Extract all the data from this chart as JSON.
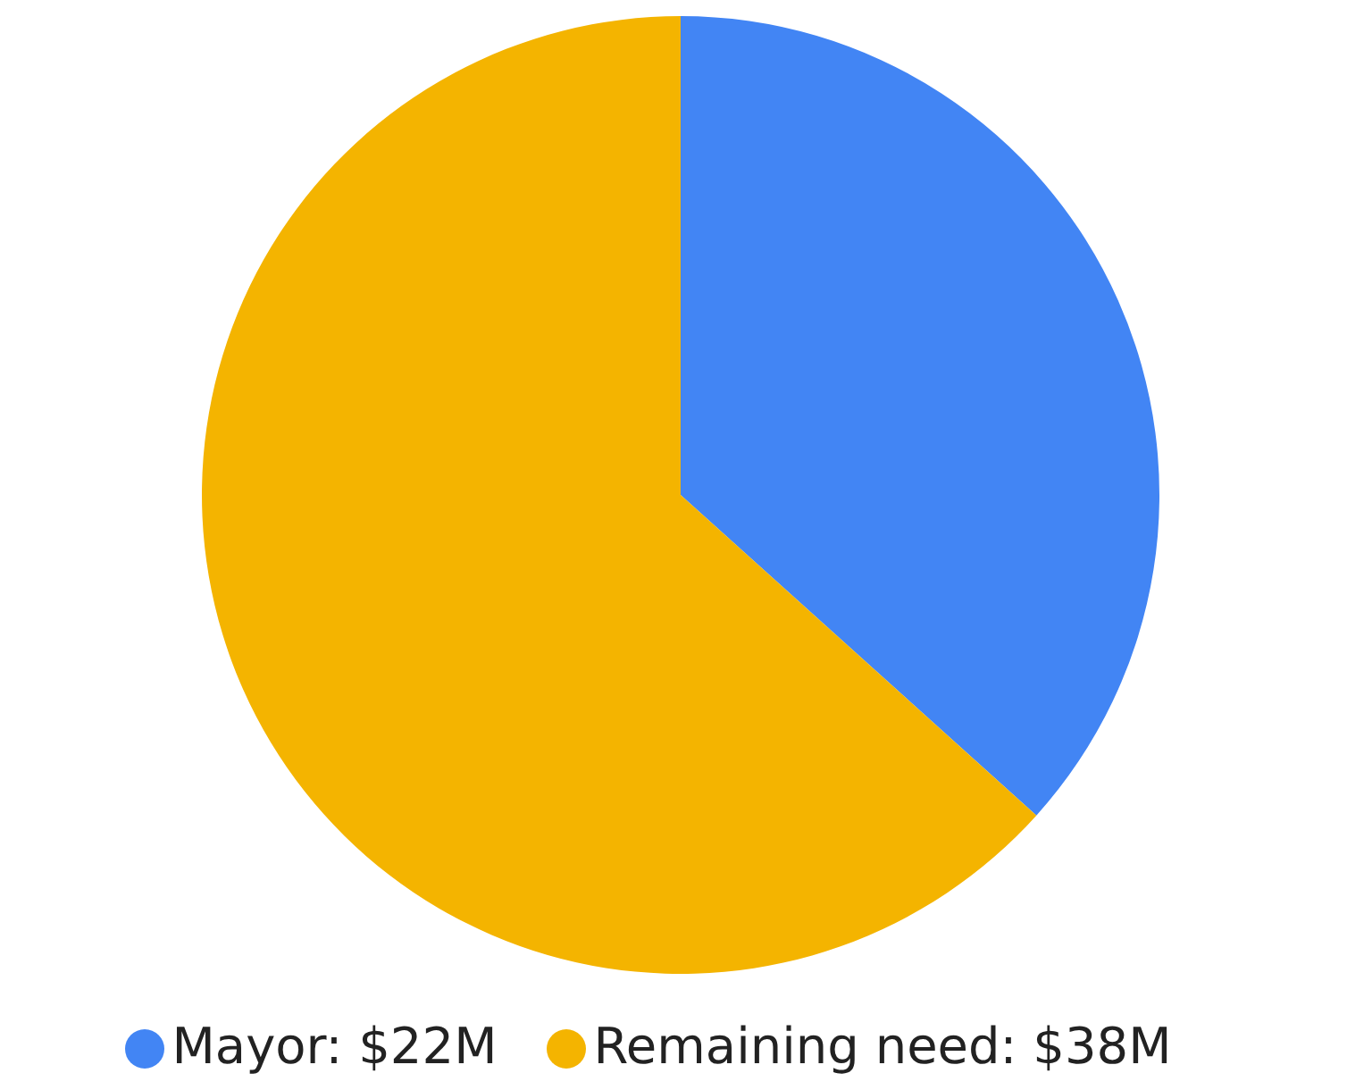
{
  "chart_data": {
    "type": "pie",
    "categories": [
      "Mayor: $22M",
      "Remaining need: $38M"
    ],
    "values": [
      22,
      38
    ],
    "colors": [
      "#4285f4",
      "#f4b400"
    ],
    "legend": "bottom"
  }
}
